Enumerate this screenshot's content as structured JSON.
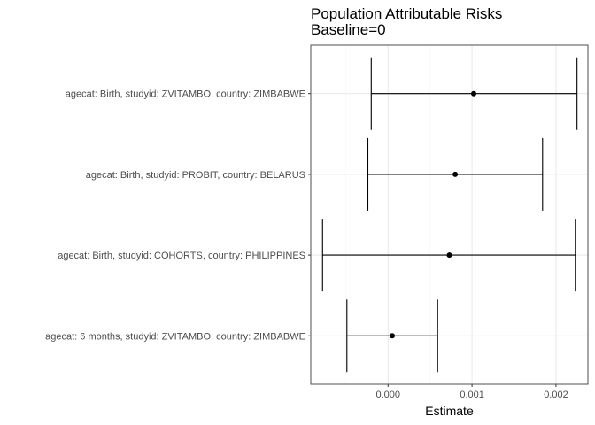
{
  "chart_data": {
    "type": "forest",
    "title": "Population Attributable Risks",
    "subtitle": "Baseline=0",
    "xlabel": "Estimate",
    "ylabel": "",
    "xlim": [
      -0.00092,
      0.00238
    ],
    "xticks": [
      0.0,
      0.001,
      0.002
    ],
    "xtick_labels": [
      "0.000",
      "0.001",
      "0.002"
    ],
    "grid": true,
    "legend": "none",
    "categories": [
      "agecat: Birth, studyid: ZVITAMBO, country: ZIMBABWE",
      "agecat: Birth, studyid: PROBIT, country: BELARUS",
      "agecat: Birth, studyid: COHORTS, country: PHILIPPINES",
      "agecat: 6 months, studyid: ZVITAMBO, country: ZIMBABWE"
    ],
    "series": [
      {
        "estimate": [
          0.00102,
          0.0008,
          0.00073,
          5e-05
        ],
        "ci_lower": [
          -0.0002,
          -0.00024,
          -0.00078,
          -0.00049
        ],
        "ci_upper": [
          0.00225,
          0.00184,
          0.00223,
          0.00059
        ]
      }
    ],
    "colors": {
      "panel_border": "#4d4d4d",
      "grid_major": "#ebebeb",
      "grid_minor": "#f5f5f5",
      "marks": "#000000",
      "tick_text": "#4d4d4d"
    }
  }
}
